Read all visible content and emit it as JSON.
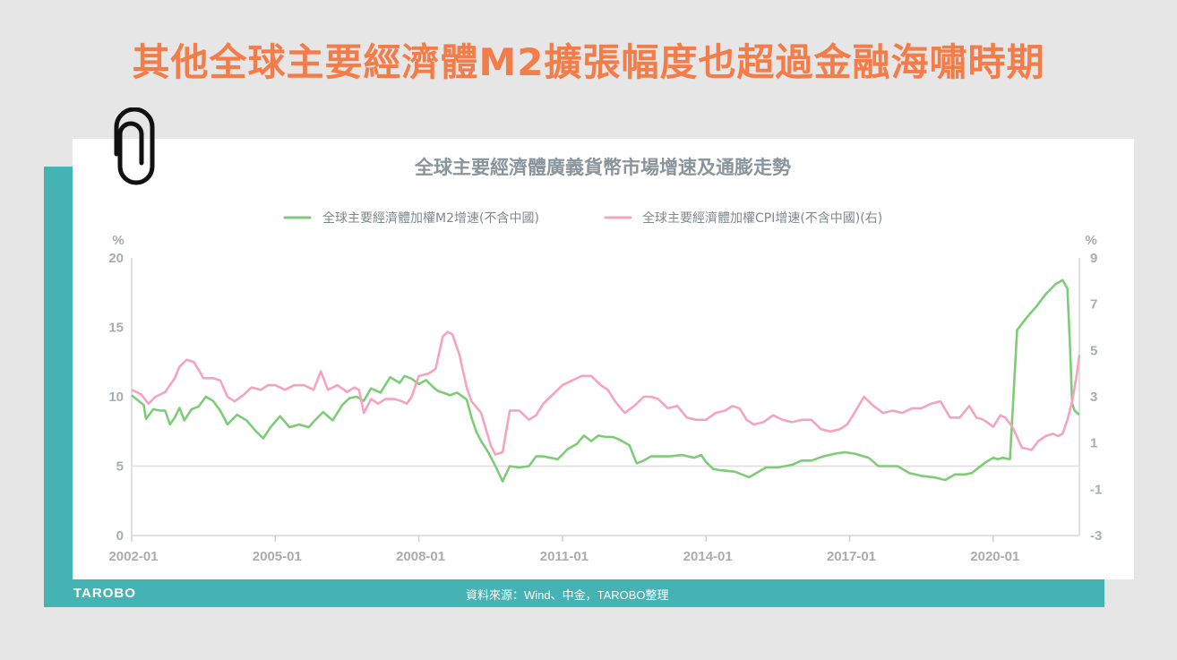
{
  "headline": "其他全球主要經濟體M2擴張幅度也超過金融海嘯時期",
  "brand": "TAROBO",
  "source": "資料來源：Wind、中金，TAROBO整理",
  "chart_data": {
    "type": "line",
    "title": "全球主要經濟體廣義貨幣市場增速及通膨走勢",
    "ylabel_left": "%",
    "ylabel_right": "%",
    "ylim_left": [
      0,
      20
    ],
    "ylim_right": [
      -3,
      9
    ],
    "yticks_left": [
      "0",
      "5",
      "10",
      "15",
      "20"
    ],
    "yticks_right": [
      "-3",
      "-1",
      "1",
      "3",
      "5",
      "7",
      "9"
    ],
    "x_start": 2002.0,
    "x_end": 2021.8,
    "xticks": [
      {
        "label": "2002-01",
        "value": 2002.0
      },
      {
        "label": "2005-01",
        "value": 2005.0
      },
      {
        "label": "2008-01",
        "value": 2008.0
      },
      {
        "label": "2011-01",
        "value": 2011.0
      },
      {
        "label": "2014-01",
        "value": 2014.0
      },
      {
        "label": "2017-01",
        "value": 2017.0
      },
      {
        "label": "2020-01",
        "value": 2020.0
      }
    ],
    "legend_position": "top",
    "series": [
      {
        "name": "全球主要經濟體加權M2增速(不含中國)",
        "axis": "left",
        "color": "#7dcc76",
        "x": [
          2002.0,
          2002.25,
          2002.3,
          2002.45,
          2002.6,
          2002.7,
          2002.8,
          2002.9,
          2003.0,
          2003.1,
          2003.25,
          2003.4,
          2003.55,
          2003.7,
          2003.85,
          2004.0,
          2004.2,
          2004.4,
          2004.6,
          2004.75,
          2004.9,
          2005.1,
          2005.3,
          2005.5,
          2005.7,
          2005.8,
          2006.0,
          2006.2,
          2006.4,
          2006.55,
          2006.7,
          2006.85,
          2007.0,
          2007.2,
          2007.4,
          2007.6,
          2007.7,
          2007.85,
          2008.0,
          2008.15,
          2008.3,
          2008.4,
          2008.5,
          2008.65,
          2008.8,
          2009.0,
          2009.1,
          2009.2,
          2009.3,
          2009.45,
          2009.6,
          2009.75,
          2009.9,
          2010.1,
          2010.3,
          2010.45,
          2010.6,
          2010.75,
          2010.9,
          2011.1,
          2011.3,
          2011.45,
          2011.6,
          2011.75,
          2011.9,
          2012.05,
          2012.2,
          2012.4,
          2012.55,
          2012.7,
          2012.85,
          2013.0,
          2013.25,
          2013.5,
          2013.75,
          2013.9,
          2014.0,
          2014.15,
          2014.3,
          2014.6,
          2014.9,
          2015.1,
          2015.25,
          2015.5,
          2015.8,
          2016.0,
          2016.2,
          2016.45,
          2016.7,
          2016.9,
          2017.1,
          2017.4,
          2017.6,
          2017.8,
          2018.0,
          2018.25,
          2018.5,
          2018.75,
          2019.0,
          2019.2,
          2019.4,
          2019.55,
          2019.7,
          2019.85,
          2020.0,
          2020.1,
          2020.2,
          2020.35,
          2020.5,
          2020.7,
          2020.9,
          2021.1,
          2021.3,
          2021.45,
          2021.55,
          2021.6,
          2021.65,
          2021.7,
          2021.8
        ],
        "values": [
          10.1,
          9.4,
          8.4,
          9.1,
          9.0,
          9.0,
          8.0,
          8.5,
          9.2,
          8.3,
          9.1,
          9.3,
          10.0,
          9.7,
          9.0,
          8.0,
          8.7,
          8.3,
          7.5,
          7.0,
          7.8,
          8.6,
          7.8,
          8.0,
          7.8,
          8.2,
          8.9,
          8.3,
          9.4,
          9.9,
          10.0,
          9.7,
          10.6,
          10.3,
          11.4,
          11.0,
          11.5,
          11.3,
          10.9,
          11.2,
          10.7,
          10.4,
          10.3,
          10.1,
          10.3,
          9.8,
          8.5,
          7.5,
          6.8,
          6.0,
          5.0,
          3.9,
          5.0,
          4.9,
          5.0,
          5.7,
          5.7,
          5.6,
          5.5,
          6.2,
          6.6,
          7.2,
          6.8,
          7.2,
          7.1,
          7.1,
          6.9,
          6.5,
          5.2,
          5.4,
          5.7,
          5.7,
          5.7,
          5.8,
          5.6,
          5.8,
          5.3,
          4.8,
          4.7,
          4.6,
          4.2,
          4.6,
          4.9,
          4.9,
          5.1,
          5.4,
          5.4,
          5.7,
          5.9,
          6.0,
          5.9,
          5.6,
          5.0,
          5.0,
          5.0,
          4.5,
          4.3,
          4.2,
          4.0,
          4.4,
          4.4,
          4.5,
          4.9,
          5.3,
          5.6,
          5.5,
          5.6,
          5.5,
          14.8,
          15.7,
          16.5,
          17.4,
          18.1,
          18.4,
          17.8,
          14.0,
          9.5,
          9.0,
          8.7
        ]
      },
      {
        "name": "全球主要經濟體加權CPI增速(不含中國)(右)",
        "axis": "right",
        "color": "#f4a3c0",
        "x": [
          2002.0,
          2002.2,
          2002.35,
          2002.5,
          2002.7,
          2002.9,
          2003.0,
          2003.15,
          2003.3,
          2003.5,
          2003.7,
          2003.85,
          2004.0,
          2004.15,
          2004.35,
          2004.5,
          2004.7,
          2004.85,
          2005.0,
          2005.2,
          2005.4,
          2005.6,
          2005.8,
          2005.95,
          2006.1,
          2006.3,
          2006.5,
          2006.65,
          2006.75,
          2006.85,
          2007.0,
          2007.15,
          2007.3,
          2007.5,
          2007.65,
          2007.75,
          2007.85,
          2008.0,
          2008.2,
          2008.35,
          2008.5,
          2008.6,
          2008.7,
          2008.85,
          2009.0,
          2009.1,
          2009.3,
          2009.5,
          2009.6,
          2009.75,
          2009.9,
          2010.1,
          2010.3,
          2010.45,
          2010.6,
          2010.8,
          2011.0,
          2011.2,
          2011.4,
          2011.6,
          2011.8,
          2011.95,
          2012.1,
          2012.3,
          2012.5,
          2012.7,
          2012.85,
          2013.0,
          2013.2,
          2013.4,
          2013.6,
          2013.8,
          2014.0,
          2014.2,
          2014.4,
          2014.55,
          2014.7,
          2014.85,
          2015.0,
          2015.2,
          2015.4,
          2015.6,
          2015.8,
          2016.0,
          2016.2,
          2016.4,
          2016.6,
          2016.8,
          2016.95,
          2017.1,
          2017.3,
          2017.5,
          2017.7,
          2017.9,
          2018.1,
          2018.3,
          2018.5,
          2018.7,
          2018.9,
          2019.1,
          2019.3,
          2019.5,
          2019.65,
          2019.8,
          2020.0,
          2020.15,
          2020.25,
          2020.4,
          2020.6,
          2020.8,
          2020.95,
          2021.1,
          2021.25,
          2021.35,
          2021.45,
          2021.55,
          2021.65,
          2021.75,
          2021.8
        ],
        "values": [
          3.3,
          3.1,
          2.7,
          3.0,
          3.2,
          3.8,
          4.3,
          4.6,
          4.5,
          3.8,
          3.8,
          3.7,
          3.0,
          2.8,
          3.1,
          3.4,
          3.3,
          3.5,
          3.5,
          3.3,
          3.5,
          3.5,
          3.3,
          4.1,
          3.3,
          3.5,
          3.2,
          3.4,
          3.3,
          2.3,
          2.9,
          2.7,
          2.9,
          2.9,
          2.8,
          2.7,
          3.0,
          3.9,
          4.0,
          4.2,
          5.6,
          5.8,
          5.7,
          4.8,
          3.4,
          2.8,
          2.3,
          0.9,
          0.5,
          0.6,
          2.4,
          2.4,
          2.0,
          2.2,
          2.7,
          3.1,
          3.5,
          3.7,
          3.9,
          3.9,
          3.5,
          3.3,
          2.8,
          2.3,
          2.6,
          3.0,
          3.0,
          2.9,
          2.5,
          2.6,
          2.1,
          2.0,
          2.0,
          2.3,
          2.4,
          2.6,
          2.5,
          2.0,
          1.8,
          1.9,
          2.2,
          2.0,
          1.9,
          2.0,
          2.0,
          1.6,
          1.5,
          1.6,
          1.8,
          2.3,
          3.0,
          2.6,
          2.3,
          2.4,
          2.3,
          2.5,
          2.5,
          2.7,
          2.8,
          2.1,
          2.1,
          2.6,
          2.1,
          2.0,
          1.7,
          2.2,
          2.1,
          1.7,
          0.8,
          0.7,
          1.1,
          1.3,
          1.4,
          1.3,
          1.4,
          2.0,
          2.8,
          4.0,
          4.8
        ]
      }
    ]
  }
}
